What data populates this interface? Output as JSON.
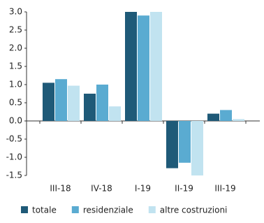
{
  "chart_data": {
    "type": "bar",
    "categories": [
      "III-18",
      "IV-18",
      "I-19",
      "II-19",
      "III-19"
    ],
    "series": [
      {
        "name": "totale",
        "color": "#1f5a78",
        "values": [
          1.05,
          0.75,
          3.0,
          -1.3,
          0.2
        ]
      },
      {
        "name": "residenziale",
        "color": "#5aabd1",
        "values": [
          1.15,
          1.0,
          2.9,
          -1.15,
          0.3
        ]
      },
      {
        "name": "altre costruzioni",
        "color": "#c1e3f0",
        "values": [
          0.97,
          0.4,
          3.0,
          -1.5,
          0.05
        ]
      }
    ],
    "ylim": [
      -1.5,
      3.0
    ],
    "yticks": [
      {
        "value": 3.0,
        "label": "3.0"
      },
      {
        "value": 2.5,
        "label": "2.5"
      },
      {
        "value": 2.0,
        "label": "2.0"
      },
      {
        "value": 1.5,
        "label": "1.5"
      },
      {
        "value": 1.0,
        "label": "1.0"
      },
      {
        "value": 0.5,
        "label": "0.5"
      },
      {
        "value": 0.0,
        "label": "0.0"
      },
      {
        "value": -0.5,
        "label": "-0.5"
      },
      {
        "value": -1.0,
        "label": "-1.0"
      },
      {
        "value": -1.5,
        "label": "-1.5"
      }
    ],
    "legend": "bottom"
  }
}
